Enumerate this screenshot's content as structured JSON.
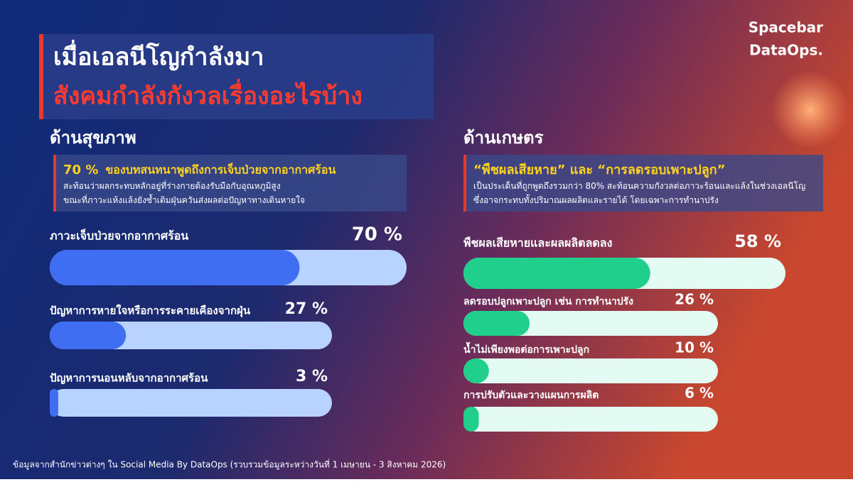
{
  "brand": {
    "line1": "Spacebar",
    "line2": "DataOps."
  },
  "header": {
    "title_line1": "เมื่อเอลนีโญกำลังมา",
    "title_line2": "สังคมกำลังกังวลเรื่องอะไรบ้าง"
  },
  "chart_data": [
    {
      "type": "bar",
      "orientation": "horizontal",
      "title": "ด้านสุขภาพ",
      "note_lead": "70 %",
      "note": "ของบทสนทนาพูดถึงการเจ็บป่วยจากอากาศร้อน",
      "description": "สะท้อนว่าผลกระทบหลักอยู่ที่ร่างกายต้องรับมือกับอุณหภูมิสูง  ขณะที่ภาวะแห้งแล้งยังซ้ำเติมฝุ่นควันส่งผลต่อปัญหาทางเดินหายใจ",
      "categories": [
        "ภาวะเจ็บป่วยจากอากาศร้อน",
        "ปัญหาการหายใจหรือการระคายเคืองจากฝุ่น",
        "ปัญหาการนอนหลับจากอากาศร้อน"
      ],
      "values": [
        70,
        27,
        3
      ],
      "value_labels": [
        "70 %",
        "27 %",
        "3 %"
      ],
      "xlim": [
        0,
        100
      ],
      "color": "#3f6ef2",
      "track_color": "#b8d3ff"
    },
    {
      "type": "bar",
      "orientation": "horizontal",
      "title": "ด้านเกษตร",
      "note_lead": "“พืชผลเสียหาย” และ “การลดรอบเพาะปลูก”",
      "description": "เป็นประเด็นที่ถูกพูดถึงรวมกว่า 80% สะท้อนความกังวลต่อภาวะร้อนและแล้งในช่วงเอลนีโญ ซึ่งอาจกระทบทั้งปริมาณผลผลิตและรายได้ โดยเฉพาะการทำนาปรัง",
      "categories": [
        "พืชผลเสียหายและผลผลิตลดลง",
        "ลดรอบปลูกเพาะปลูก เช่น การทำนาปรัง",
        "น้ำไม่เพียงพอต่อการเพาะปลูก",
        "การปรับตัวและวางแผนการผลิต"
      ],
      "values": [
        58,
        26,
        10,
        6
      ],
      "value_labels": [
        "58 %",
        "26 %",
        "10 %",
        "6 %"
      ],
      "xlim": [
        0,
        100
      ],
      "color": "#1fcf8b",
      "track_color": "#e4fbf3"
    }
  ],
  "source": "ข้อมูลจากสำนักข่าวต่างๆ ใน Social Media By DataOps (รวบรวมข้อมูลระหว่างวันที่  1 เมษายน - 3 สิงหาคม 2026)"
}
